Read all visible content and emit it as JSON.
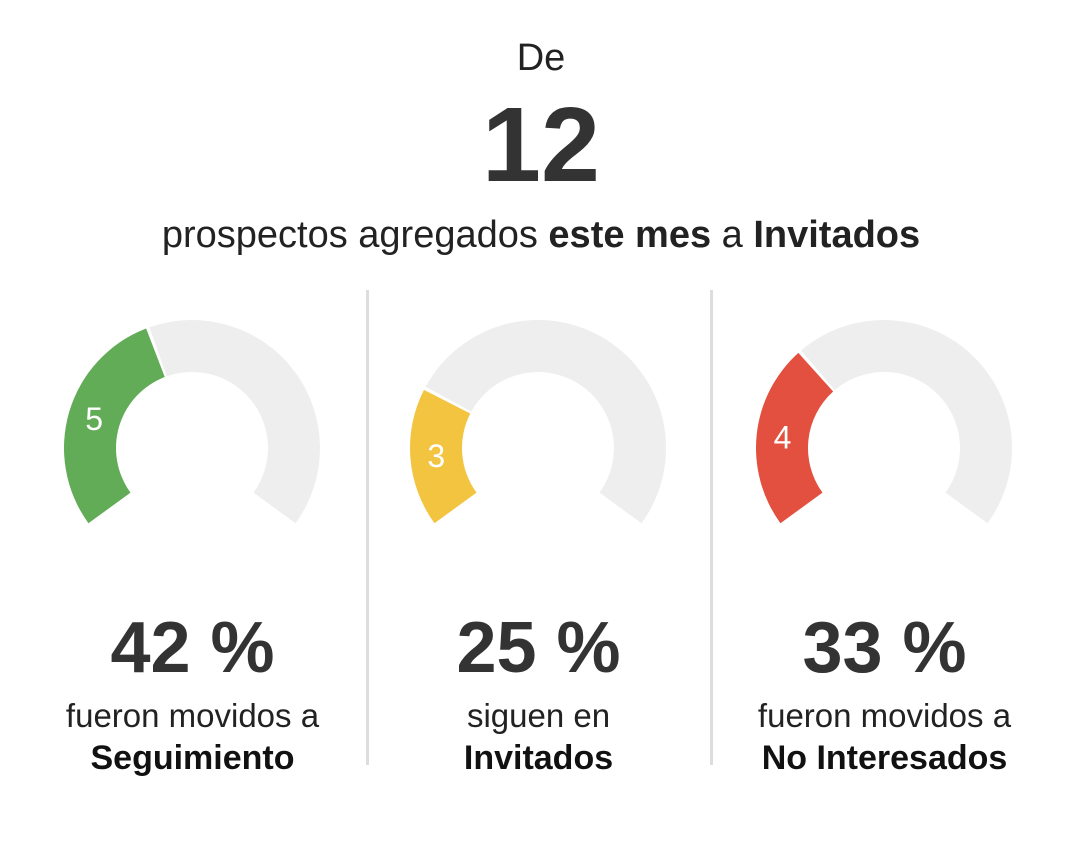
{
  "header": {
    "intro": "De",
    "total": "12",
    "subtitle_parts": [
      "prospectos agregados ",
      "este mes",
      " a ",
      "Invitados"
    ]
  },
  "panels": [
    {
      "percent": "42 %",
      "description": "fueron movidos a",
      "stage": "Seguimiento",
      "count": "5",
      "color": "#62ac58"
    },
    {
      "percent": "25 %",
      "description": "siguen en",
      "stage": "Invitados",
      "count": "3",
      "color": "#f3c440"
    },
    {
      "percent": "33 %",
      "description": "fueron movidos a",
      "stage": "No Interesados",
      "count": "4",
      "color": "#e3503f"
    }
  ],
  "chart_data": {
    "type": "gauge",
    "total": 12,
    "track_color": "#eeeeee",
    "series": [
      {
        "value": 5,
        "max": 12,
        "percent": 42
      },
      {
        "value": 3,
        "max": 12,
        "percent": 25
      },
      {
        "value": 4,
        "max": 12,
        "percent": 33
      }
    ]
  }
}
